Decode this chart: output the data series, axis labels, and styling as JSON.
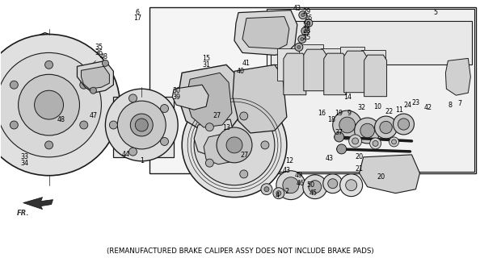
{
  "caption": "(REMANUFACTURED BRAKE CALIPER ASSY DOES NOT INCLUDE BRAKE PADS)",
  "bg_color": "#ffffff",
  "fig_width": 5.94,
  "fig_height": 3.2,
  "dpi": 100,
  "caption_fontsize": 6.2,
  "line_color": "#1a1a1a",
  "text_color": "#000000",
  "gray_fill": "#c8c8c8",
  "light_fill": "#e8e8e8",
  "dark_fill": "#888888",
  "white_fill": "#ffffff"
}
